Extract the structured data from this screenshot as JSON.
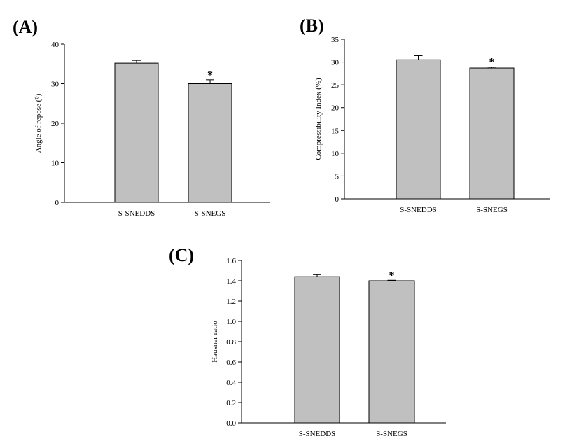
{
  "chart_data": [
    {
      "type": "bar",
      "panel": "(A)",
      "categories": [
        "S-SNEDDS",
        "S-SNEGS"
      ],
      "series": [
        {
          "values": [
            35.2,
            30.0
          ],
          "errors": [
            0.7,
            1.0
          ]
        }
      ],
      "annotations": [
        "",
        "*"
      ],
      "ylabel": "Angle of repose (⁰)",
      "ylim": [
        0,
        40
      ],
      "yticks": [
        0,
        10,
        20,
        30,
        40
      ],
      "ytick_labels": [
        "0",
        "10",
        "20",
        "30",
        "40"
      ],
      "bar_color": "#c0c0c0"
    },
    {
      "type": "bar",
      "panel": "(B)",
      "categories": [
        "S-SNEDDS",
        "S-SNEGS"
      ],
      "series": [
        {
          "values": [
            30.5,
            28.7
          ],
          "errors": [
            0.9,
            0.2
          ]
        }
      ],
      "annotations": [
        "",
        "*"
      ],
      "ylabel": "Compressibility Index (%)",
      "ylim": [
        0,
        35
      ],
      "yticks": [
        0,
        5,
        10,
        15,
        20,
        25,
        30,
        35
      ],
      "ytick_labels": [
        "0",
        "5",
        "10",
        "15",
        "20",
        "25",
        "30",
        "35"
      ],
      "bar_color": "#c0c0c0"
    },
    {
      "type": "bar",
      "panel": "(C)",
      "categories": [
        "S-SNEDDS",
        "S-SNEGS"
      ],
      "series": [
        {
          "values": [
            1.44,
            1.4
          ],
          "errors": [
            0.02,
            0.005
          ]
        }
      ],
      "annotations": [
        "",
        "*"
      ],
      "ylabel": "Hausner ratio",
      "ylim": [
        0,
        1.6
      ],
      "yticks": [
        0,
        0.2,
        0.4,
        0.6,
        0.8,
        1.0,
        1.2,
        1.4,
        1.6
      ],
      "ytick_labels": [
        "0.0",
        "0.2",
        "0.4",
        "0.6",
        "0.8",
        "1.0",
        "1.2",
        "1.4",
        "1.6"
      ],
      "bar_color": "#c0c0c0"
    }
  ]
}
